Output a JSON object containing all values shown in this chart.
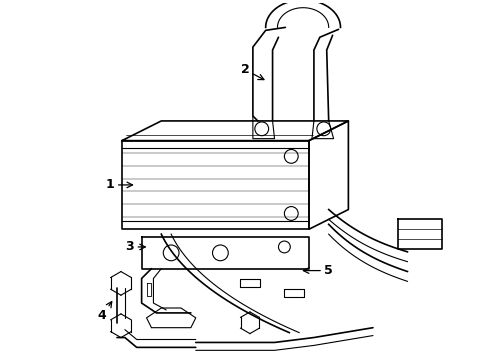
{
  "bg_color": "#ffffff",
  "line_color": "#000000",
  "fig_width": 4.9,
  "fig_height": 3.6,
  "dpi": 100,
  "label_fontsize": 9,
  "label_fontweight": "bold"
}
